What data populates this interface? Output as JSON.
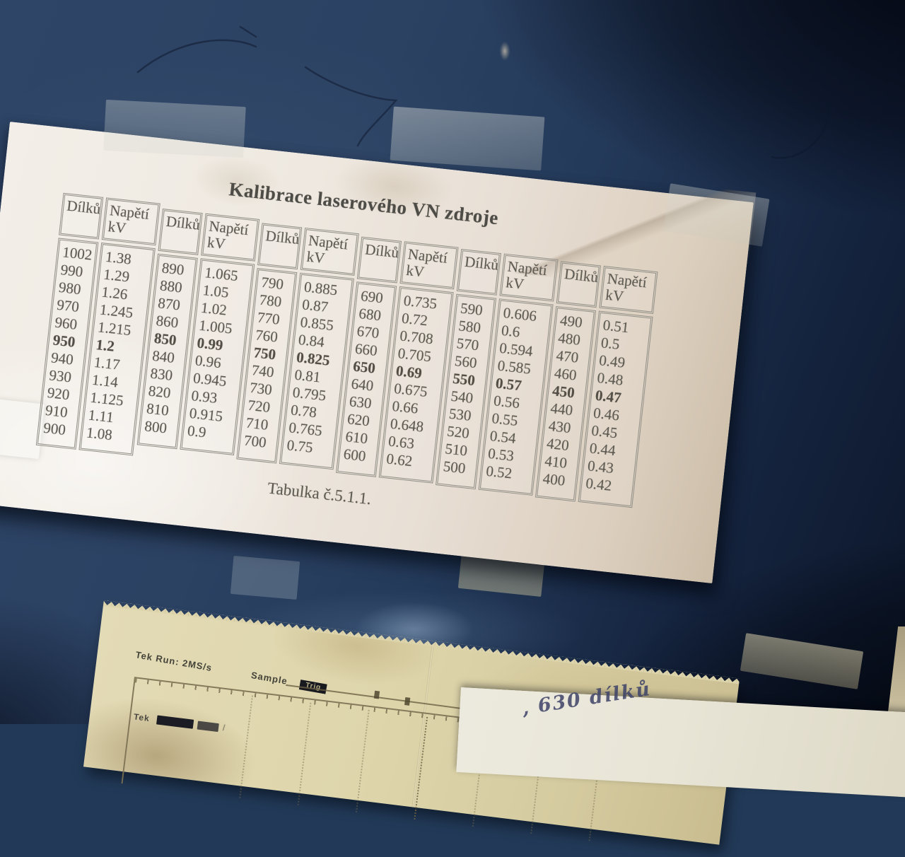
{
  "calibration_sheet": {
    "title": "Kalibrace laserového VN zdroje",
    "caption": "Tabulka č.5.1.1.",
    "header_dilku": "Dílků",
    "header_napeti": "Napětí\nkV",
    "pairs": [
      {
        "dilku": [
          "1002",
          "990",
          "980",
          "970",
          "960",
          "950",
          "940",
          "930",
          "920",
          "910",
          "900"
        ],
        "napeti": [
          "1.38",
          "1.29",
          "1.26",
          "1.245",
          "1.215",
          "1.2",
          "1.17",
          "1.14",
          "1.125",
          "1.11",
          "1.08"
        ],
        "bold_index": 5
      },
      {
        "dilku": [
          "890",
          "880",
          "870",
          "860",
          "850",
          "840",
          "830",
          "820",
          "810",
          "800"
        ],
        "napeti": [
          "1.065",
          "1.05",
          "1.02",
          "1.005",
          "0.99",
          "0.96",
          "0.945",
          "0.93",
          "0.915",
          "0.9"
        ],
        "bold_index": 4
      },
      {
        "dilku": [
          "790",
          "780",
          "770",
          "760",
          "750",
          "740",
          "730",
          "720",
          "710",
          "700"
        ],
        "napeti": [
          "0.885",
          "0.87",
          "0.855",
          "0.84",
          "0.825",
          "0.81",
          "0.795",
          "0.78",
          "0.765",
          "0.75"
        ],
        "bold_index": 4
      },
      {
        "dilku": [
          "690",
          "680",
          "670",
          "660",
          "650",
          "640",
          "630",
          "620",
          "610",
          "600"
        ],
        "napeti": [
          "0.735",
          "0.72",
          "0.708",
          "0.705",
          "0.69",
          "0.675",
          "0.66",
          "0.648",
          "0.63",
          "0.62"
        ],
        "bold_index": 4
      },
      {
        "dilku": [
          "590",
          "580",
          "570",
          "560",
          "550",
          "540",
          "530",
          "520",
          "510",
          "500"
        ],
        "napeti": [
          "0.606",
          "0.6",
          "0.594",
          "0.585",
          "0.57",
          "0.56",
          "0.55",
          "0.54",
          "0.53",
          "0.52"
        ],
        "bold_index": 4
      },
      {
        "dilku": [
          "490",
          "480",
          "470",
          "460",
          "450",
          "440",
          "430",
          "420",
          "410",
          "400"
        ],
        "napeti": [
          "0.51",
          "0.5",
          "0.49",
          "0.48",
          "0.47",
          "0.46",
          "0.45",
          "0.44",
          "0.43",
          "0.42"
        ],
        "bold_index": 4
      }
    ]
  },
  "scope_sheet": {
    "run_label": "Tek Run: 2MS/s",
    "sample_label": "Sample",
    "trig_badge": "Trig",
    "footer_label": "Tek",
    "footer_slash": "/"
  },
  "note_sheet": {
    "handwriting": ", 630 dílků"
  },
  "colors": {
    "wall_blue": "#2c4263",
    "wall_dark": "#0c1629",
    "paper_white": "#eee8e0",
    "scope_paper": "#ded5ab",
    "print_ink": "#5e5b53",
    "pen_ink": "#3e4368"
  }
}
